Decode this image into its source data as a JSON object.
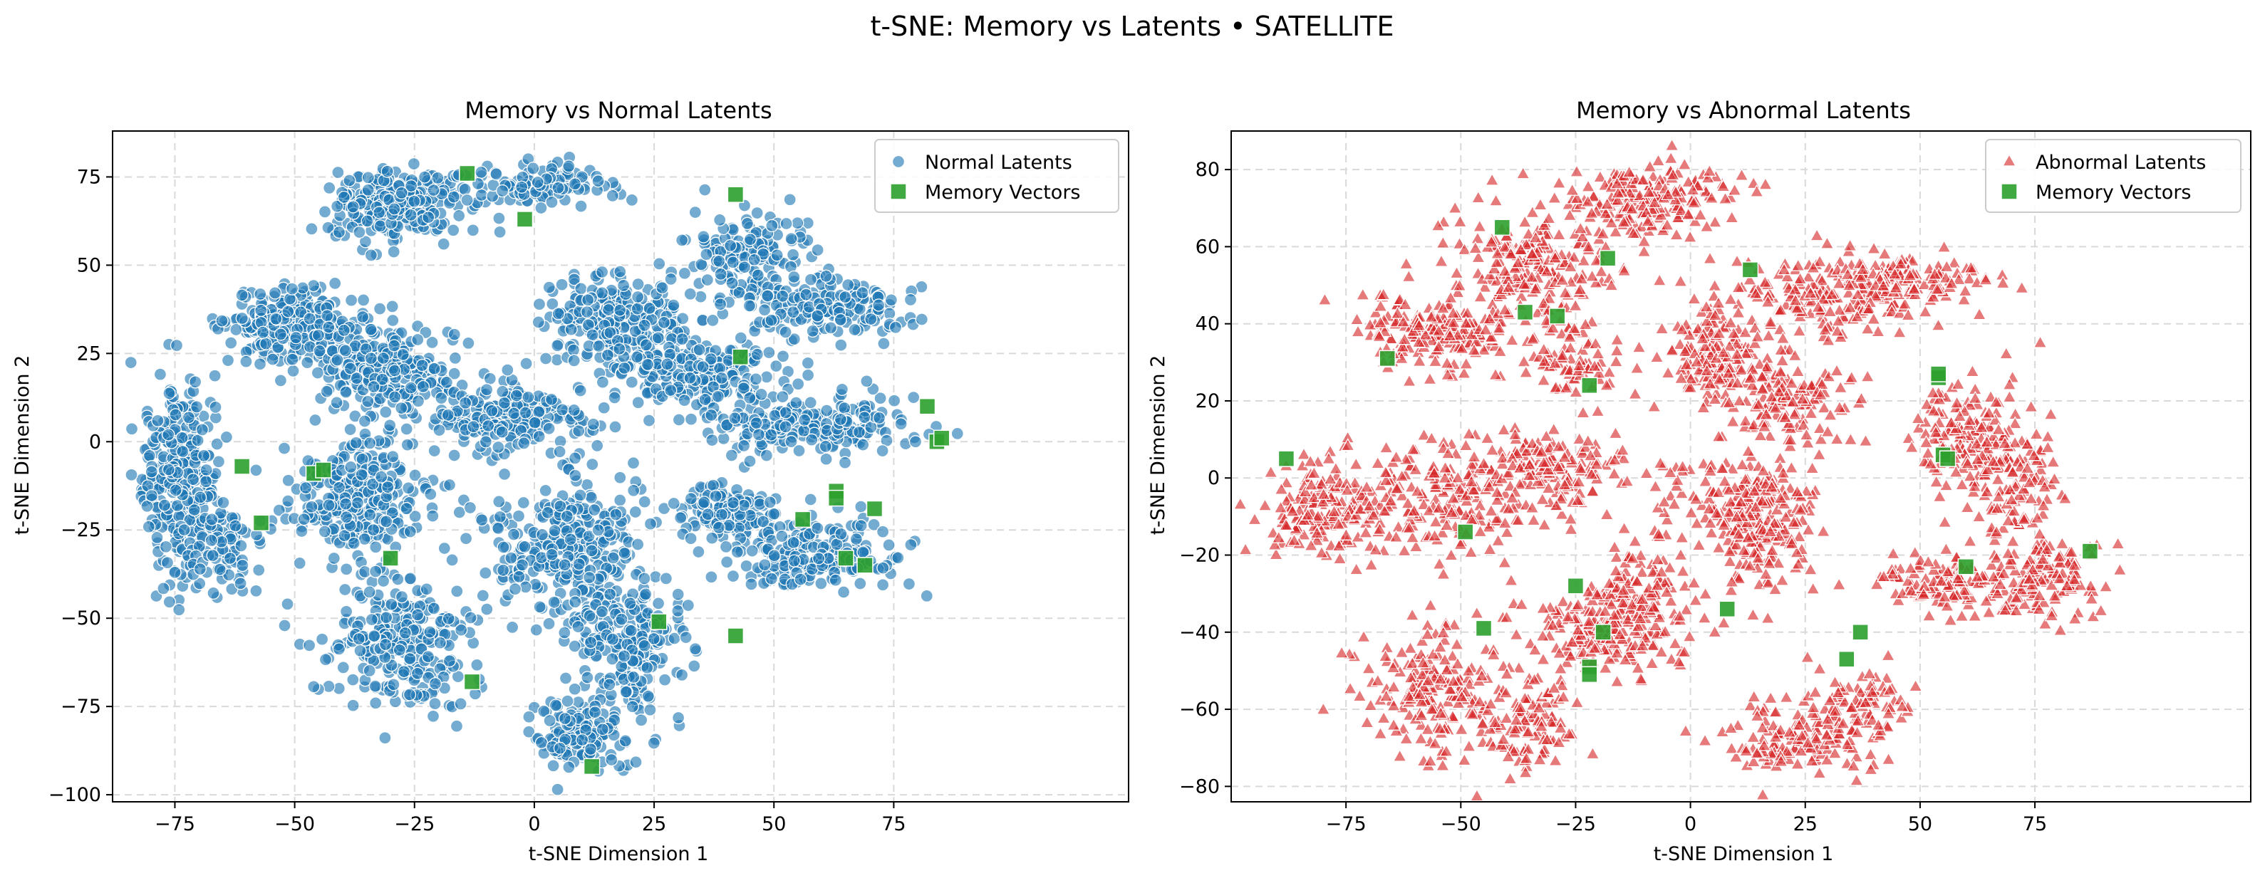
{
  "suptitle": "t-SNE: Memory vs Latents • SATELLITE",
  "colors": {
    "normal": "#1f77b4",
    "abnormal": "#d62728",
    "memory": "#2ca02c",
    "grid": "#d9d9d9"
  },
  "chart_data": [
    {
      "type": "scatter",
      "title": "Memory vs Normal Latents",
      "xlabel": "t-SNE Dimension 1",
      "ylabel": "t-SNE Dimension 2",
      "xlim": [
        -88,
        124
      ],
      "ylim": [
        -102,
        88
      ],
      "xticks": [
        -75,
        -50,
        -25,
        0,
        25,
        50,
        75
      ],
      "yticks": [
        -100,
        -75,
        -50,
        -25,
        0,
        25,
        50,
        75
      ],
      "xtick_labels": [
        "−75",
        "−50",
        "−25",
        "0",
        "25",
        "50",
        "75"
      ],
      "ytick_labels": [
        "−100",
        "−75",
        "−50",
        "−25",
        "0",
        "25",
        "50",
        "75"
      ],
      "grid": true,
      "legend_position": "top-right",
      "legend": [
        "Normal Latents",
        "Memory Vectors"
      ],
      "latent_clusters": [
        {
          "cx": -29,
          "cy": 67,
          "sx": 7,
          "sy": 5,
          "n": 260
        },
        {
          "cx": 3,
          "cy": 73,
          "sx": 8,
          "sy": 3,
          "n": 100
        },
        {
          "cx": -50,
          "cy": 33,
          "sx": 7,
          "sy": 5,
          "n": 280
        },
        {
          "cx": -30,
          "cy": 20,
          "sx": 8,
          "sy": 6,
          "n": 240
        },
        {
          "cx": -5,
          "cy": 7,
          "sx": 8,
          "sy": 5,
          "n": 220
        },
        {
          "cx": 17,
          "cy": 35,
          "sx": 8,
          "sy": 6,
          "n": 220
        },
        {
          "cx": 32,
          "cy": 20,
          "sx": 10,
          "sy": 5,
          "n": 240
        },
        {
          "cx": 58,
          "cy": 5,
          "sx": 12,
          "sy": 4,
          "n": 220
        },
        {
          "cx": 45,
          "cy": 52,
          "sx": 6,
          "sy": 7,
          "n": 160
        },
        {
          "cx": 62,
          "cy": 38,
          "sx": 8,
          "sy": 4,
          "n": 160
        },
        {
          "cx": -74,
          "cy": -10,
          "sx": 4,
          "sy": 14,
          "n": 320
        },
        {
          "cx": -65,
          "cy": -30,
          "sx": 4,
          "sy": 6,
          "n": 90
        },
        {
          "cx": -37,
          "cy": -16,
          "sx": 8,
          "sy": 9,
          "n": 300
        },
        {
          "cx": -28,
          "cy": -57,
          "sx": 7,
          "sy": 9,
          "n": 260
        },
        {
          "cx": 7,
          "cy": -30,
          "sx": 8,
          "sy": 10,
          "n": 300
        },
        {
          "cx": 20,
          "cy": -58,
          "sx": 6,
          "sy": 9,
          "n": 220
        },
        {
          "cx": 9,
          "cy": -82,
          "sx": 5,
          "sy": 5,
          "n": 140
        },
        {
          "cx": 40,
          "cy": -20,
          "sx": 6,
          "sy": 4,
          "n": 140
        },
        {
          "cx": 58,
          "cy": -32,
          "sx": 9,
          "sy": 5,
          "n": 200
        }
      ],
      "memory_vectors": [
        [
          -14,
          76
        ],
        [
          -2,
          63
        ],
        [
          42,
          70
        ],
        [
          43,
          24
        ],
        [
          82,
          10
        ],
        [
          84,
          0
        ],
        [
          85,
          1
        ],
        [
          -61,
          -7
        ],
        [
          -57,
          -23
        ],
        [
          -46,
          -9
        ],
        [
          -44,
          -8
        ],
        [
          -30,
          -33
        ],
        [
          26,
          -51
        ],
        [
          42,
          -55
        ],
        [
          56,
          -22
        ],
        [
          63,
          -14
        ],
        [
          63,
          -16
        ],
        [
          71,
          -19
        ],
        [
          65,
          -33
        ],
        [
          69,
          -35
        ],
        [
          -13,
          -68
        ],
        [
          12,
          -92
        ]
      ]
    },
    {
      "type": "scatter",
      "title": "Memory vs Abnormal Latents",
      "xlabel": "t-SNE Dimension 1",
      "ylabel": "t-SNE Dimension 2",
      "xlim": [
        -100,
        122
      ],
      "ylim": [
        -84,
        90
      ],
      "xticks": [
        -75,
        -50,
        -25,
        0,
        25,
        50,
        75
      ],
      "yticks": [
        -80,
        -60,
        -40,
        -20,
        0,
        20,
        40,
        60,
        80
      ],
      "xtick_labels": [
        "−75",
        "−50",
        "−25",
        "0",
        "25",
        "50",
        "75"
      ],
      "ytick_labels": [
        "−80",
        "−60",
        "−40",
        "−20",
        "0",
        "20",
        "40",
        "60",
        "80"
      ],
      "grid": true,
      "legend_position": "top-right",
      "legend": [
        "Abnormal Latents",
        "Memory Vectors"
      ],
      "latent_clusters": [
        {
          "cx": -57,
          "cy": 38,
          "sx": 8,
          "sy": 5,
          "n": 200
        },
        {
          "cx": -35,
          "cy": 55,
          "sx": 8,
          "sy": 8,
          "n": 220
        },
        {
          "cx": -10,
          "cy": 72,
          "sx": 10,
          "sy": 5,
          "n": 200
        },
        {
          "cx": -25,
          "cy": 30,
          "sx": 5,
          "sy": 5,
          "n": 80
        },
        {
          "cx": 5,
          "cy": 33,
          "sx": 5,
          "sy": 6,
          "n": 140
        },
        {
          "cx": 20,
          "cy": 20,
          "sx": 8,
          "sy": 6,
          "n": 160
        },
        {
          "cx": 32,
          "cy": 48,
          "sx": 12,
          "sy": 5,
          "n": 200
        },
        {
          "cx": 50,
          "cy": 52,
          "sx": 8,
          "sy": 3,
          "n": 80
        },
        {
          "cx": -80,
          "cy": -8,
          "sx": 6,
          "sy": 6,
          "n": 160
        },
        {
          "cx": -55,
          "cy": -5,
          "sx": 10,
          "sy": 8,
          "n": 200
        },
        {
          "cx": -30,
          "cy": 2,
          "sx": 8,
          "sy": 5,
          "n": 160
        },
        {
          "cx": 10,
          "cy": -5,
          "sx": 8,
          "sy": 6,
          "n": 140
        },
        {
          "cx": 15,
          "cy": -15,
          "sx": 5,
          "sy": 8,
          "n": 140
        },
        {
          "cx": -20,
          "cy": -40,
          "sx": 9,
          "sy": 5,
          "n": 180
        },
        {
          "cx": -10,
          "cy": -30,
          "sx": 5,
          "sy": 7,
          "n": 120
        },
        {
          "cx": -55,
          "cy": -55,
          "sx": 8,
          "sy": 8,
          "n": 200
        },
        {
          "cx": -35,
          "cy": -65,
          "sx": 5,
          "sy": 6,
          "n": 100
        },
        {
          "cx": 22,
          "cy": -68,
          "sx": 8,
          "sy": 5,
          "n": 140
        },
        {
          "cx": 38,
          "cy": -58,
          "sx": 5,
          "sy": 5,
          "n": 80
        },
        {
          "cx": 60,
          "cy": 12,
          "sx": 5,
          "sy": 8,
          "n": 140
        },
        {
          "cx": 70,
          "cy": 0,
          "sx": 5,
          "sy": 8,
          "n": 120
        },
        {
          "cx": 60,
          "cy": -28,
          "sx": 10,
          "sy": 4,
          "n": 160
        },
        {
          "cx": 78,
          "cy": -25,
          "sx": 6,
          "sy": 5,
          "n": 100
        }
      ],
      "memory_vectors": [
        [
          -41,
          65
        ],
        [
          -18,
          57
        ],
        [
          13,
          54
        ],
        [
          -66,
          31
        ],
        [
          -36,
          43
        ],
        [
          -29,
          42
        ],
        [
          -22,
          24
        ],
        [
          54,
          26
        ],
        [
          54,
          27
        ],
        [
          -88,
          5
        ],
        [
          55,
          6
        ],
        [
          56,
          5
        ],
        [
          -49,
          -14
        ],
        [
          -45,
          -39
        ],
        [
          -25,
          -28
        ],
        [
          -19,
          -40
        ],
        [
          -22,
          -49
        ],
        [
          -22,
          -51
        ],
        [
          8,
          -34
        ],
        [
          37,
          -40
        ],
        [
          34,
          -47
        ],
        [
          60,
          -23
        ],
        [
          87,
          -19
        ]
      ]
    }
  ]
}
